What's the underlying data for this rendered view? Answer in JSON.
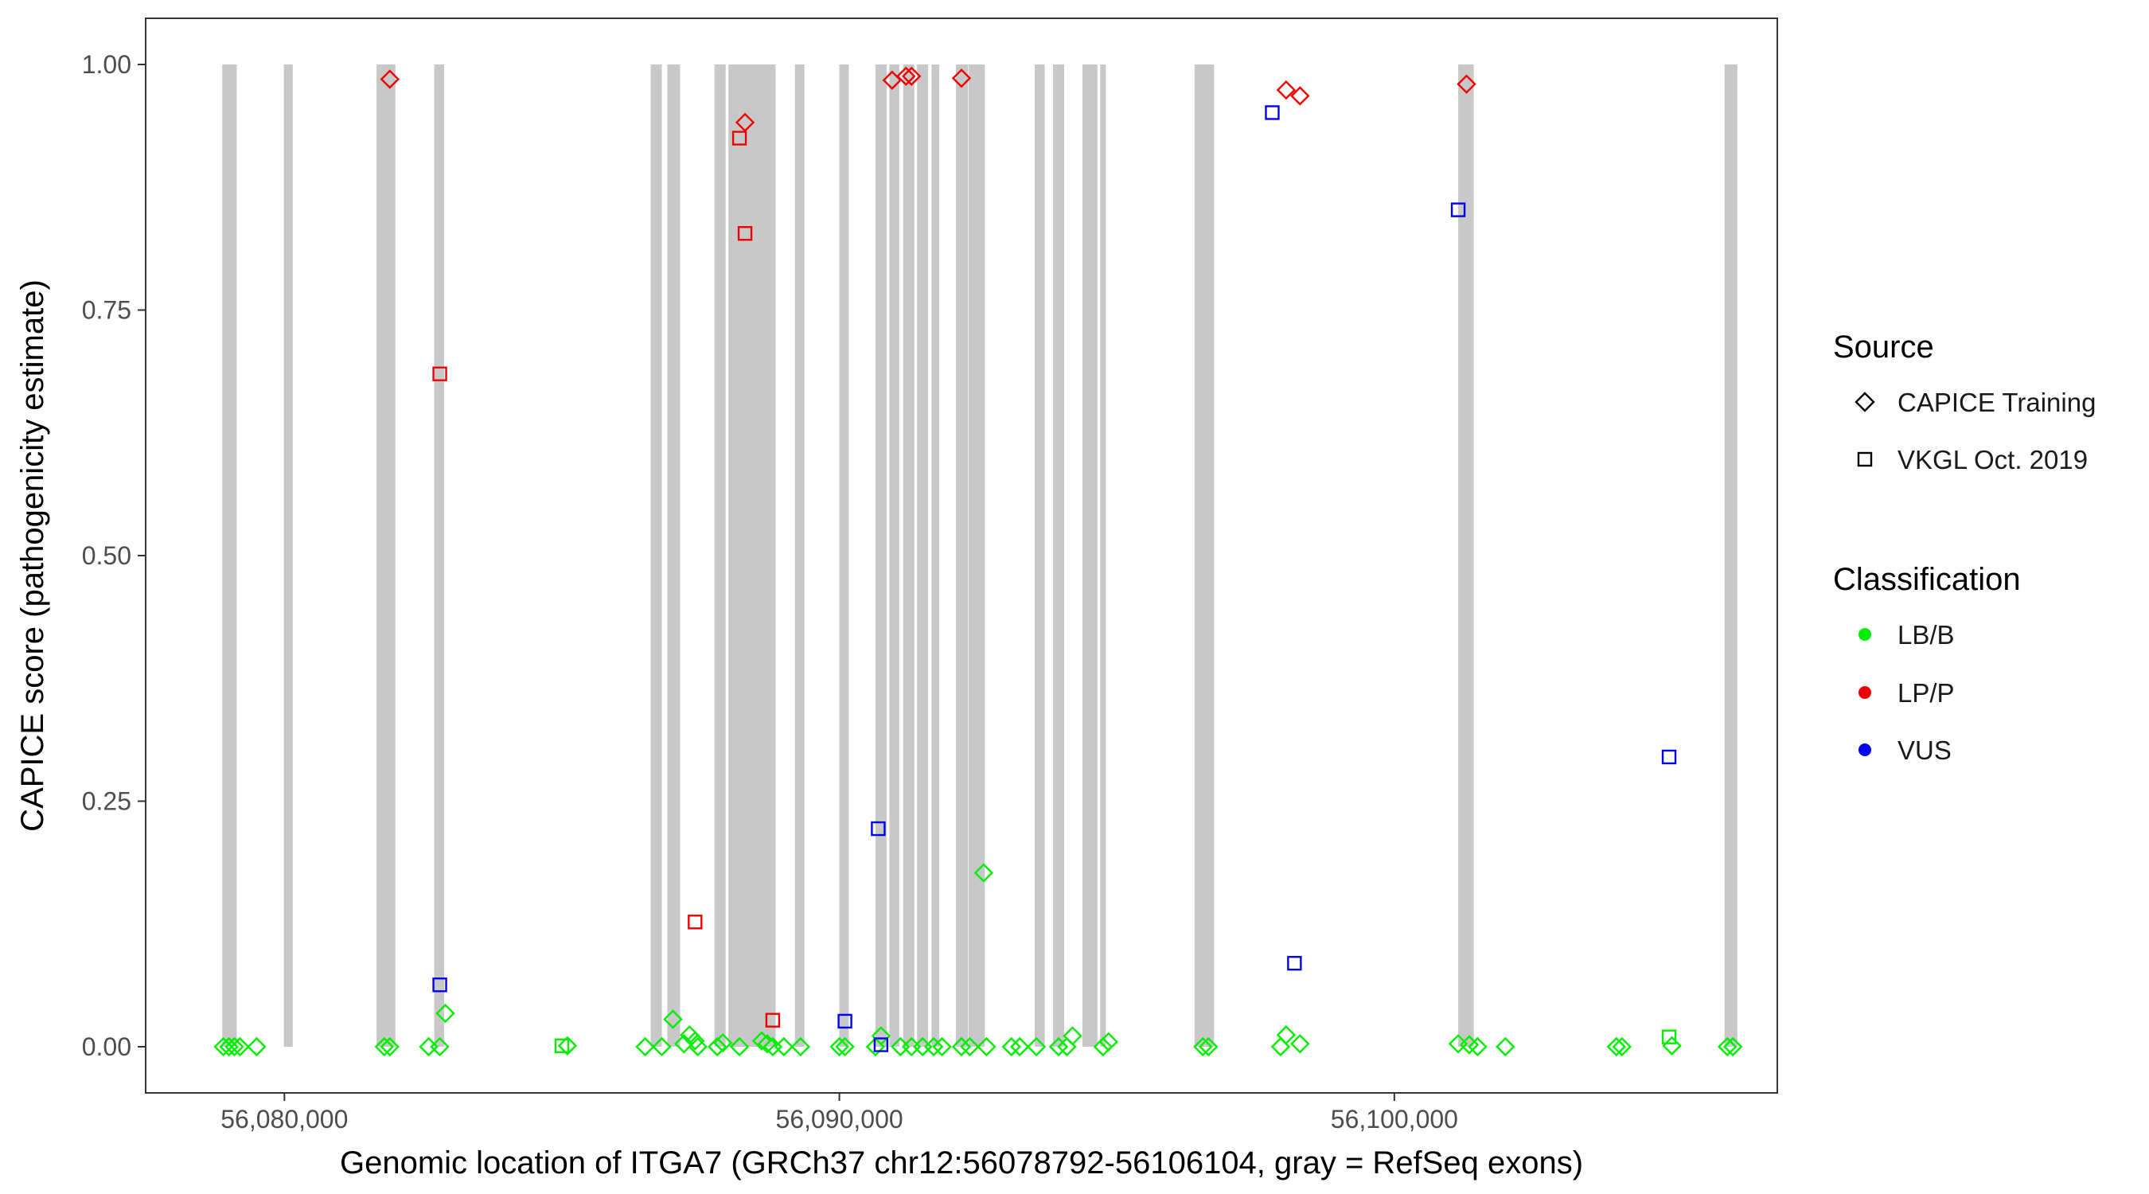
{
  "chart_data": {
    "type": "scatter",
    "title": "",
    "xlabel": "Genomic location of ITGA7 (GRCh37 chr12:56078792-56106104, gray = RefSeq exons)",
    "ylabel": "CAPICE score (pathogenicity estimate)",
    "xlim": [
      56077500,
      56106900
    ],
    "ylim": [
      -0.047,
      1.047
    ],
    "x_ticks": [
      56080000,
      56090000,
      56100000
    ],
    "x_tick_labels": [
      "56,080,000",
      "56,090,000",
      "56,100,000"
    ],
    "y_ticks": [
      0,
      0.25,
      0.5,
      0.75,
      1
    ],
    "y_tick_labels": [
      "0.00",
      "0.25",
      "0.50",
      "0.75",
      "1.00"
    ],
    "grid": false,
    "legend_position": "right",
    "legend": {
      "source_title": "Source",
      "source_items": [
        {
          "label": "CAPICE Training",
          "shape": "diamond"
        },
        {
          "label": "VKGL Oct. 2019",
          "shape": "square"
        }
      ],
      "class_title": "Classification",
      "class_items": [
        {
          "label": "LB/B",
          "color": "#00ee00"
        },
        {
          "label": "LP/P",
          "color": "#ee0000"
        },
        {
          "label": "VUS",
          "color": "#0000ee"
        }
      ]
    },
    "colors": {
      "LB/B": "#00ee00",
      "LP/P": "#ee0000",
      "VUS": "#0000ee",
      "exon": "#c8c8c8"
    },
    "exons": [
      [
        56078880,
        56079140
      ],
      [
        56079990,
        56080150
      ],
      [
        56081660,
        56082000
      ],
      [
        56082700,
        56082880
      ],
      [
        56086600,
        56086800
      ],
      [
        56086900,
        56087130
      ],
      [
        56087750,
        56087950
      ],
      [
        56088000,
        56088850
      ],
      [
        56089200,
        56089370
      ],
      [
        56090000,
        56090170
      ],
      [
        56090650,
        56090850
      ],
      [
        56090900,
        56091080
      ],
      [
        56091150,
        56091350
      ],
      [
        56091400,
        56091600
      ],
      [
        56091660,
        56091800
      ],
      [
        56092100,
        56092320
      ],
      [
        56092330,
        56092620
      ],
      [
        56093520,
        56093700
      ],
      [
        56093850,
        56094050
      ],
      [
        56094380,
        56094650
      ],
      [
        56094700,
        56094800
      ],
      [
        56096400,
        56096750
      ],
      [
        56101150,
        56101430
      ],
      [
        56105950,
        56106180
      ]
    ],
    "series": [
      {
        "name": "CAPICE Training",
        "shape": "diamond",
        "points": [
          {
            "x": 56078900,
            "y": 0.0,
            "c": "LB/B"
          },
          {
            "x": 56079000,
            "y": 0.0,
            "c": "LB/B"
          },
          {
            "x": 56079100,
            "y": 0.0,
            "c": "LB/B"
          },
          {
            "x": 56079200,
            "y": 0.0,
            "c": "LB/B"
          },
          {
            "x": 56079500,
            "y": 0.0,
            "c": "LB/B"
          },
          {
            "x": 56081800,
            "y": 0.0,
            "c": "LB/B"
          },
          {
            "x": 56081900,
            "y": 0.0,
            "c": "LB/B"
          },
          {
            "x": 56081900,
            "y": 0.985,
            "c": "LP/P"
          },
          {
            "x": 56082600,
            "y": 0.0,
            "c": "LB/B"
          },
          {
            "x": 56082800,
            "y": 0.0,
            "c": "LB/B"
          },
          {
            "x": 56082900,
            "y": 0.034,
            "c": "LB/B"
          },
          {
            "x": 56085100,
            "y": 0.001,
            "c": "LB/B"
          },
          {
            "x": 56086500,
            "y": 0.0,
            "c": "LB/B"
          },
          {
            "x": 56086800,
            "y": 0.0,
            "c": "LB/B"
          },
          {
            "x": 56087000,
            "y": 0.028,
            "c": "LB/B"
          },
          {
            "x": 56087200,
            "y": 0.003,
            "c": "LB/B"
          },
          {
            "x": 56087300,
            "y": 0.012,
            "c": "LB/B"
          },
          {
            "x": 56087400,
            "y": 0.006,
            "c": "LB/B"
          },
          {
            "x": 56087450,
            "y": 0.0,
            "c": "LB/B"
          },
          {
            "x": 56087800,
            "y": 0.0,
            "c": "LB/B"
          },
          {
            "x": 56087900,
            "y": 0.004,
            "c": "LB/B"
          },
          {
            "x": 56088200,
            "y": 0.0,
            "c": "LB/B"
          },
          {
            "x": 56088300,
            "y": 0.941,
            "c": "LP/P"
          },
          {
            "x": 56088600,
            "y": 0.006,
            "c": "LB/B"
          },
          {
            "x": 56088700,
            "y": 0.003,
            "c": "LB/B"
          },
          {
            "x": 56088800,
            "y": 0.0,
            "c": "LB/B"
          },
          {
            "x": 56089000,
            "y": 0.0,
            "c": "LB/B"
          },
          {
            "x": 56089300,
            "y": 0.0,
            "c": "LB/B"
          },
          {
            "x": 56090000,
            "y": 0.0,
            "c": "LB/B"
          },
          {
            "x": 56090100,
            "y": 0.0,
            "c": "LB/B"
          },
          {
            "x": 56090650,
            "y": 0.0,
            "c": "LB/B"
          },
          {
            "x": 56090750,
            "y": 0.011,
            "c": "LB/B"
          },
          {
            "x": 56090950,
            "y": 0.984,
            "c": "LP/P"
          },
          {
            "x": 56091100,
            "y": 0.0,
            "c": "LB/B"
          },
          {
            "x": 56091200,
            "y": 0.988,
            "c": "LP/P"
          },
          {
            "x": 56091300,
            "y": 0.988,
            "c": "LP/P"
          },
          {
            "x": 56091300,
            "y": 0.0,
            "c": "LB/B"
          },
          {
            "x": 56091500,
            "y": 0.0,
            "c": "LB/B"
          },
          {
            "x": 56091700,
            "y": 0.0,
            "c": "LB/B"
          },
          {
            "x": 56091850,
            "y": 0.0,
            "c": "LB/B"
          },
          {
            "x": 56092200,
            "y": 0.986,
            "c": "LP/P"
          },
          {
            "x": 56092200,
            "y": 0.0,
            "c": "LB/B"
          },
          {
            "x": 56092350,
            "y": 0.0,
            "c": "LB/B"
          },
          {
            "x": 56092600,
            "y": 0.177,
            "c": "LB/B"
          },
          {
            "x": 56092650,
            "y": 0.0,
            "c": "LB/B"
          },
          {
            "x": 56093100,
            "y": 0.0,
            "c": "LB/B"
          },
          {
            "x": 56093250,
            "y": 0.0,
            "c": "LB/B"
          },
          {
            "x": 56093550,
            "y": 0.0,
            "c": "LB/B"
          },
          {
            "x": 56093950,
            "y": 0.0,
            "c": "LB/B"
          },
          {
            "x": 56094100,
            "y": 0.0,
            "c": "LB/B"
          },
          {
            "x": 56094200,
            "y": 0.011,
            "c": "LB/B"
          },
          {
            "x": 56094750,
            "y": 0.0,
            "c": "LB/B"
          },
          {
            "x": 56094850,
            "y": 0.005,
            "c": "LB/B"
          },
          {
            "x": 56096550,
            "y": 0.0,
            "c": "LB/B"
          },
          {
            "x": 56096650,
            "y": 0.0,
            "c": "LB/B"
          },
          {
            "x": 56097950,
            "y": 0.0,
            "c": "LB/B"
          },
          {
            "x": 56098050,
            "y": 0.012,
            "c": "LB/B"
          },
          {
            "x": 56098050,
            "y": 0.974,
            "c": "LP/P"
          },
          {
            "x": 56098300,
            "y": 0.003,
            "c": "LB/B"
          },
          {
            "x": 56098300,
            "y": 0.968,
            "c": "LP/P"
          },
          {
            "x": 56101150,
            "y": 0.003,
            "c": "LB/B"
          },
          {
            "x": 56101300,
            "y": 0.98,
            "c": "LP/P"
          },
          {
            "x": 56101350,
            "y": 0.002,
            "c": "LB/B"
          },
          {
            "x": 56101500,
            "y": 0.0,
            "c": "LB/B"
          },
          {
            "x": 56102000,
            "y": 0.0,
            "c": "LB/B"
          },
          {
            "x": 56104000,
            "y": 0.0,
            "c": "LB/B"
          },
          {
            "x": 56104100,
            "y": 0.0,
            "c": "LB/B"
          },
          {
            "x": 56105000,
            "y": 0.001,
            "c": "LB/B"
          },
          {
            "x": 56106000,
            "y": 0.0,
            "c": "LB/B"
          },
          {
            "x": 56106100,
            "y": 0.0,
            "c": "LB/B"
          }
        ]
      },
      {
        "name": "VKGL Oct. 2019",
        "shape": "square",
        "points": [
          {
            "x": 56082800,
            "y": 0.685,
            "c": "LP/P"
          },
          {
            "x": 56082800,
            "y": 0.063,
            "c": "VUS"
          },
          {
            "x": 56085000,
            "y": 0.001,
            "c": "LB/B"
          },
          {
            "x": 56087400,
            "y": 0.127,
            "c": "LP/P"
          },
          {
            "x": 56088200,
            "y": 0.925,
            "c": "LP/P"
          },
          {
            "x": 56088300,
            "y": 0.828,
            "c": "LP/P"
          },
          {
            "x": 56088800,
            "y": 0.027,
            "c": "LP/P"
          },
          {
            "x": 56090100,
            "y": 0.026,
            "c": "VUS"
          },
          {
            "x": 56090700,
            "y": 0.222,
            "c": "VUS"
          },
          {
            "x": 56090750,
            "y": 0.002,
            "c": "VUS"
          },
          {
            "x": 56097800,
            "y": 0.951,
            "c": "VUS"
          },
          {
            "x": 56098200,
            "y": 0.085,
            "c": "VUS"
          },
          {
            "x": 56101150,
            "y": 0.852,
            "c": "VUS"
          },
          {
            "x": 56104950,
            "y": 0.295,
            "c": "VUS"
          },
          {
            "x": 56104950,
            "y": 0.01,
            "c": "LB/B"
          }
        ]
      }
    ]
  }
}
